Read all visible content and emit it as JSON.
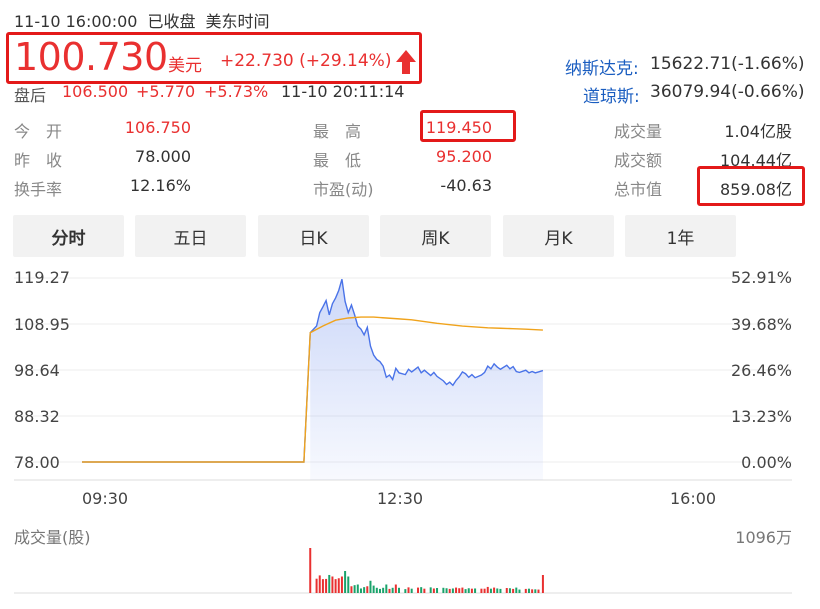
{
  "header": {
    "datetime": "11-10 16:00:00",
    "status": "已收盘",
    "timezone": "美东时间"
  },
  "quote": {
    "price": "100.730",
    "currency": "美元",
    "change": "+22.730 (+29.14%)",
    "direction_icon": "arrow-up-icon",
    "color_up": "#e93030"
  },
  "after_hours": {
    "label": "盘后",
    "price": "106.500",
    "change": "+5.770",
    "pct": "+5.73%",
    "time": "11-10 20:11:14"
  },
  "indices": [
    {
      "name": "纳斯达克:",
      "value": "15622.71(-1.66%)"
    },
    {
      "name": "道琼斯:",
      "value": "36079.94(-0.66%)"
    }
  ],
  "stats": {
    "open_label": "今　开",
    "open": "106.750",
    "prev_label": "昨　收",
    "prev": "78.000",
    "turnover_label": "换手率",
    "turnover": "12.16%",
    "high_label": "最　高",
    "high": "119.450",
    "low_label": "最　低",
    "low": "95.200",
    "pe_label": "市盈(动)",
    "pe": "-40.63",
    "volume_label": "成交量",
    "volume": "1.04亿股",
    "amount_label": "成交额",
    "amount": "104.44亿",
    "mcap_label": "总市值",
    "mcap": "859.08亿"
  },
  "tabs": [
    "分时",
    "五日",
    "日K",
    "周K",
    "月K",
    "1年"
  ],
  "active_tab": "分时",
  "chart_data": {
    "type": "line",
    "y_left_ticks": [
      "119.27",
      "108.95",
      "98.64",
      "88.32",
      "78.00"
    ],
    "y_right_ticks": [
      "52.91%",
      "39.68%",
      "26.46%",
      "13.23%",
      "0.00%"
    ],
    "x_ticks": [
      "09:30",
      "12:30",
      "16:00"
    ],
    "ylim": [
      78.0,
      119.27
    ],
    "series": [
      {
        "role": "price",
        "color": "#4a73e8",
        "values": [
          [
            0.0,
            78.0
          ],
          [
            0.35,
            78.0
          ],
          [
            0.36,
            107.0
          ],
          [
            0.37,
            108.5
          ],
          [
            0.375,
            111.5
          ],
          [
            0.38,
            112.8
          ],
          [
            0.385,
            114.2
          ],
          [
            0.39,
            111.0
          ],
          [
            0.395,
            113.5
          ],
          [
            0.4,
            114.8
          ],
          [
            0.405,
            116.5
          ],
          [
            0.41,
            119.0
          ],
          [
            0.415,
            114.0
          ],
          [
            0.42,
            111.5
          ],
          [
            0.425,
            113.2
          ],
          [
            0.43,
            111.0
          ],
          [
            0.435,
            108.5
          ],
          [
            0.44,
            107.8
          ],
          [
            0.445,
            106.5
          ],
          [
            0.45,
            108.2
          ],
          [
            0.455,
            104.0
          ],
          [
            0.46,
            102.0
          ],
          [
            0.465,
            101.0
          ],
          [
            0.47,
            100.5
          ],
          [
            0.475,
            99.5
          ],
          [
            0.48,
            97.0
          ],
          [
            0.485,
            97.5
          ],
          [
            0.49,
            96.5
          ],
          [
            0.495,
            99.0
          ],
          [
            0.5,
            98.0
          ],
          [
            0.51,
            97.6
          ],
          [
            0.515,
            98.8
          ],
          [
            0.52,
            98.2
          ],
          [
            0.53,
            99.3
          ],
          [
            0.535,
            98.0
          ],
          [
            0.54,
            98.6
          ],
          [
            0.55,
            97.4
          ],
          [
            0.555,
            98.1
          ],
          [
            0.56,
            97.2
          ],
          [
            0.57,
            96.2
          ],
          [
            0.575,
            95.4
          ],
          [
            0.58,
            95.9
          ],
          [
            0.585,
            95.2
          ],
          [
            0.59,
            96.3
          ],
          [
            0.595,
            97.1
          ],
          [
            0.6,
            98.2
          ],
          [
            0.605,
            97.8
          ],
          [
            0.61,
            97.0
          ],
          [
            0.615,
            97.6
          ],
          [
            0.62,
            96.9
          ],
          [
            0.63,
            97.5
          ],
          [
            0.635,
            98.1
          ],
          [
            0.64,
            99.5
          ],
          [
            0.645,
            98.9
          ],
          [
            0.65,
            100.0
          ],
          [
            0.655,
            99.3
          ],
          [
            0.66,
            98.8
          ],
          [
            0.67,
            99.7
          ],
          [
            0.675,
            98.9
          ],
          [
            0.68,
            99.4
          ],
          [
            0.685,
            98.3
          ],
          [
            0.69,
            98.1
          ],
          [
            0.7,
            98.6
          ],
          [
            0.705,
            98.0
          ],
          [
            0.71,
            98.3
          ],
          [
            0.715,
            98.0
          ],
          [
            0.72,
            98.2
          ],
          [
            0.727,
            98.5
          ]
        ]
      },
      {
        "role": "avg",
        "color": "#f0a31c",
        "values": [
          [
            0.0,
            78.0
          ],
          [
            0.35,
            78.0
          ],
          [
            0.36,
            107.0
          ],
          [
            0.38,
            108.5
          ],
          [
            0.4,
            109.8
          ],
          [
            0.42,
            110.3
          ],
          [
            0.44,
            110.5
          ],
          [
            0.46,
            110.5
          ],
          [
            0.48,
            110.3
          ],
          [
            0.5,
            110.1
          ],
          [
            0.52,
            109.9
          ],
          [
            0.54,
            109.5
          ],
          [
            0.56,
            109.1
          ],
          [
            0.58,
            108.8
          ],
          [
            0.6,
            108.5
          ],
          [
            0.62,
            108.3
          ],
          [
            0.64,
            108.1
          ],
          [
            0.66,
            108.0
          ],
          [
            0.68,
            107.9
          ],
          [
            0.7,
            107.8
          ],
          [
            0.727,
            107.6
          ]
        ]
      }
    ]
  },
  "volume": {
    "label": "成交量(股)",
    "max_label": "1096万",
    "bar_color_up": "#e93030",
    "bar_color_down": "#1aa36b"
  }
}
